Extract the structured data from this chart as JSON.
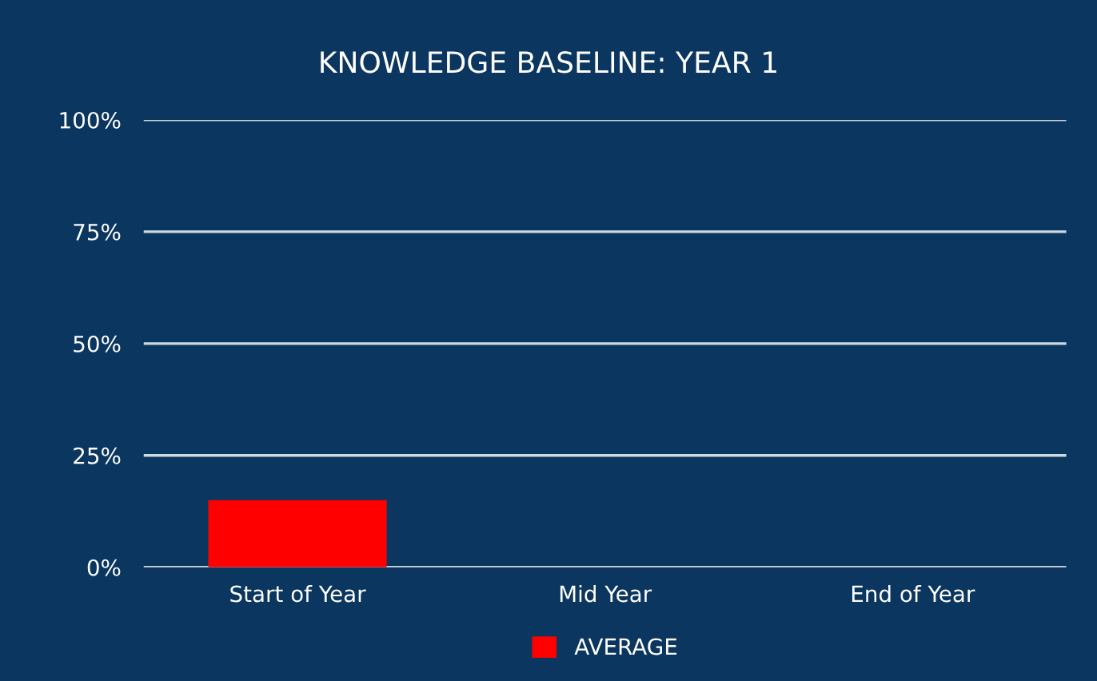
{
  "chart_data": {
    "type": "bar",
    "title": "KNOWLEDGE BASELINE: YEAR 1",
    "categories": [
      "Start of Year",
      "Mid Year",
      "End of Year"
    ],
    "series": [
      {
        "name": "AVERAGE",
        "color": "#ff0000",
        "values": [
          15,
          null,
          null
        ]
      }
    ],
    "ylim": [
      0,
      100
    ],
    "yticks": [
      {
        "value": 0,
        "label": "0%"
      },
      {
        "value": 25,
        "label": "25%"
      },
      {
        "value": 50,
        "label": "50%"
      },
      {
        "value": 75,
        "label": "75%"
      },
      {
        "value": 100,
        "label": "100%"
      }
    ],
    "grid": "y",
    "legend": "bottom"
  }
}
